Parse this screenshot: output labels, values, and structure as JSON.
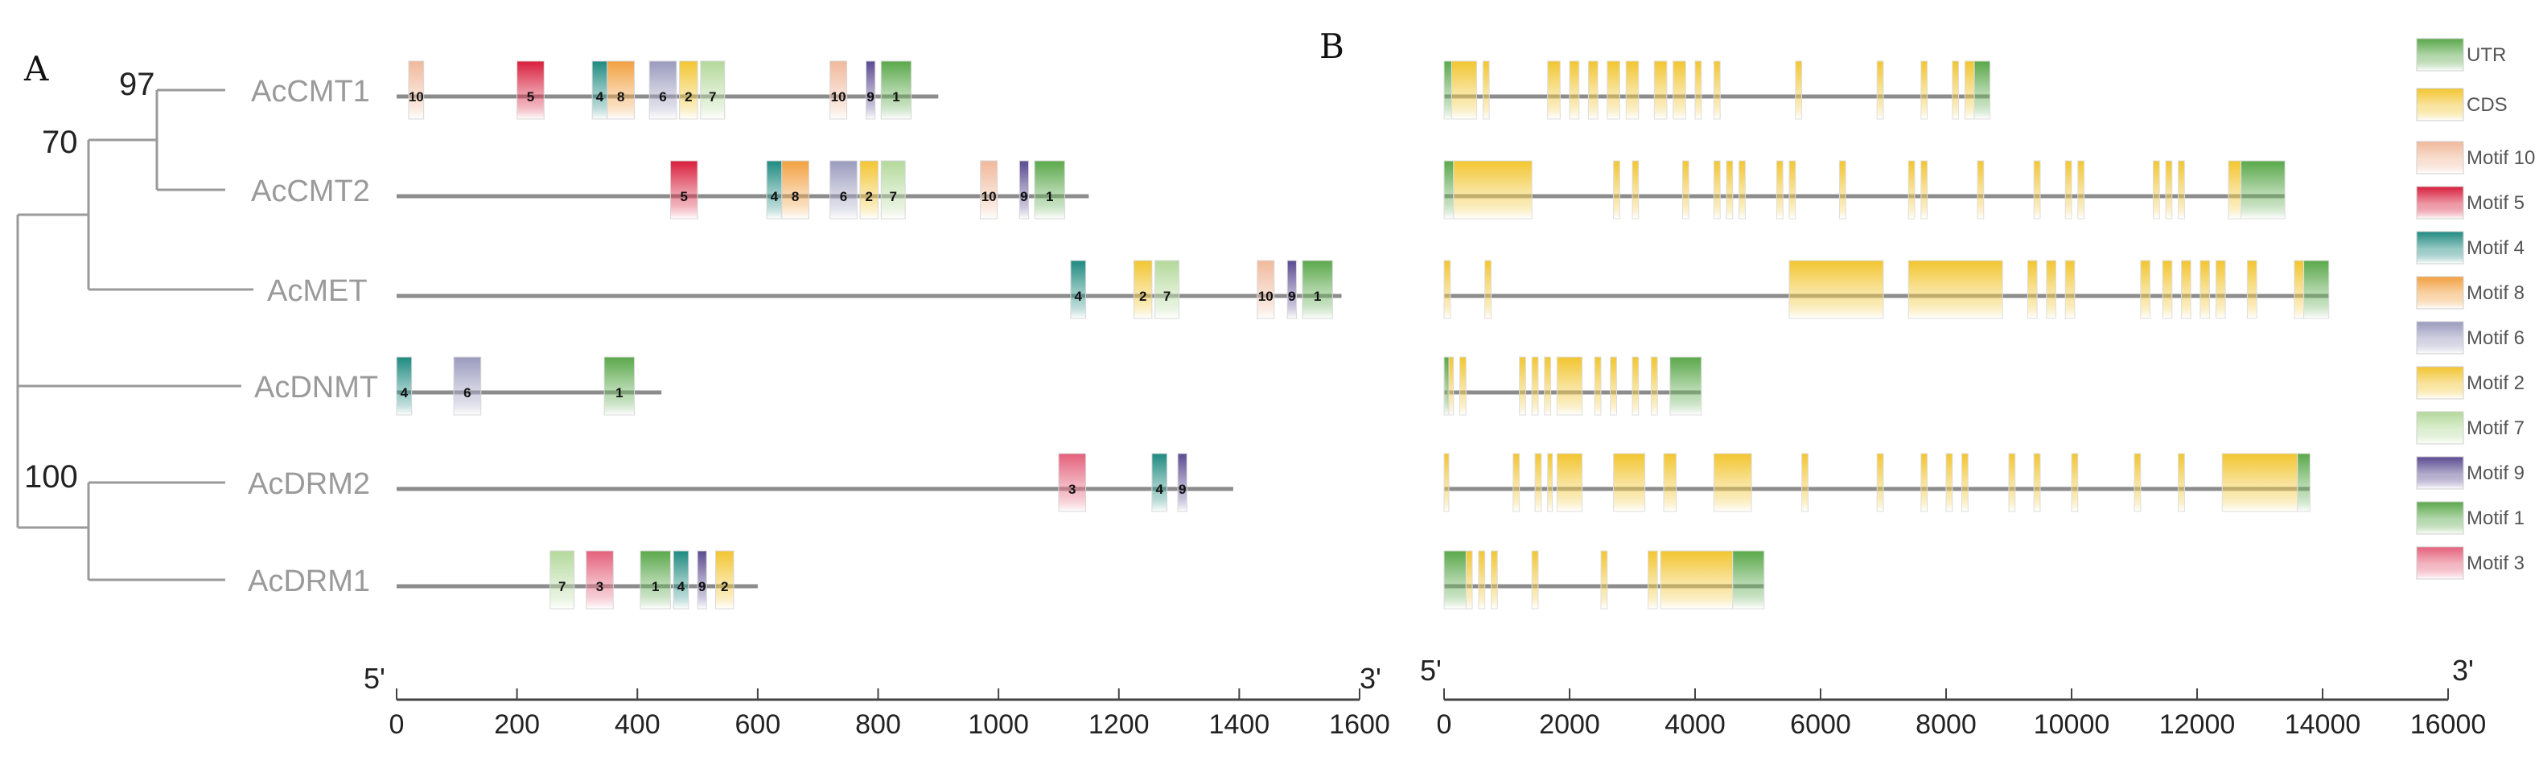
{
  "panels": {
    "a": "A",
    "b": "B"
  },
  "tree": {
    "bootstraps": [
      "97",
      "70",
      "100"
    ],
    "genes": [
      "AcCMT1",
      "AcCMT2",
      "AcMET",
      "AcDNMT",
      "AcDRM2",
      "AcDRM1"
    ]
  },
  "motif_colors": {
    "1": "#5aa84a",
    "2": "#f2c530",
    "3": "#e4607a",
    "4": "#1e8a80",
    "5": "#d81e3c",
    "6": "#9a9abe",
    "7": "#b3d99a",
    "8": "#f2a040",
    "9": "#5a4a90",
    "10": "#f0b89a"
  },
  "chart_data": [
    {
      "type": "motif_map",
      "title": "A",
      "x_axis": {
        "ticks": [
          0,
          200,
          400,
          600,
          800,
          1000,
          1200,
          1400,
          1600
        ],
        "start_label": "5'",
        "end_label": "3'"
      },
      "proteins": [
        {
          "gene": "AcCMT1",
          "length": 900,
          "motifs": [
            {
              "id": 10,
              "s": 20,
              "e": 45
            },
            {
              "id": 5,
              "s": 200,
              "e": 245
            },
            {
              "id": 4,
              "s": 325,
              "e": 350
            },
            {
              "id": 8,
              "s": 350,
              "e": 395
            },
            {
              "id": 6,
              "s": 420,
              "e": 465
            },
            {
              "id": 2,
              "s": 470,
              "e": 500
            },
            {
              "id": 7,
              "s": 505,
              "e": 545
            },
            {
              "id": 10,
              "s": 720,
              "e": 748
            },
            {
              "id": 9,
              "s": 780,
              "e": 795
            },
            {
              "id": 1,
              "s": 805,
              "e": 855
            }
          ]
        },
        {
          "gene": "AcCMT2",
          "length": 1150,
          "motifs": [
            {
              "id": 5,
              "s": 455,
              "e": 500
            },
            {
              "id": 4,
              "s": 615,
              "e": 640
            },
            {
              "id": 8,
              "s": 640,
              "e": 685
            },
            {
              "id": 6,
              "s": 720,
              "e": 765
            },
            {
              "id": 2,
              "s": 770,
              "e": 800
            },
            {
              "id": 7,
              "s": 805,
              "e": 845
            },
            {
              "id": 10,
              "s": 970,
              "e": 998
            },
            {
              "id": 9,
              "s": 1035,
              "e": 1050
            },
            {
              "id": 1,
              "s": 1060,
              "e": 1110
            }
          ]
        },
        {
          "gene": "AcMET",
          "length": 1570,
          "motifs": [
            {
              "id": 4,
              "s": 1120,
              "e": 1145
            },
            {
              "id": 2,
              "s": 1225,
              "e": 1255
            },
            {
              "id": 7,
              "s": 1260,
              "e": 1300
            },
            {
              "id": 10,
              "s": 1430,
              "e": 1458
            },
            {
              "id": 9,
              "s": 1480,
              "e": 1495
            },
            {
              "id": 1,
              "s": 1505,
              "e": 1555
            }
          ]
        },
        {
          "gene": "AcDNMT",
          "length": 440,
          "motifs": [
            {
              "id": 4,
              "s": 0,
              "e": 25
            },
            {
              "id": 6,
              "s": 95,
              "e": 140
            },
            {
              "id": 1,
              "s": 345,
              "e": 395
            }
          ]
        },
        {
          "gene": "AcDRM2",
          "length": 1390,
          "motifs": [
            {
              "id": 3,
              "s": 1100,
              "e": 1145
            },
            {
              "id": 4,
              "s": 1255,
              "e": 1280
            },
            {
              "id": 9,
              "s": 1298,
              "e": 1313
            }
          ]
        },
        {
          "gene": "AcDRM1",
          "length": 600,
          "motifs": [
            {
              "id": 7,
              "s": 255,
              "e": 295
            },
            {
              "id": 3,
              "s": 315,
              "e": 360
            },
            {
              "id": 1,
              "s": 405,
              "e": 455
            },
            {
              "id": 4,
              "s": 460,
              "e": 485
            },
            {
              "id": 9,
              "s": 500,
              "e": 515
            },
            {
              "id": 2,
              "s": 530,
              "e": 560
            }
          ]
        }
      ]
    },
    {
      "type": "gene_structure",
      "title": "B",
      "x_axis": {
        "ticks": [
          0,
          2000,
          4000,
          6000,
          8000,
          10000,
          12000,
          14000,
          16000
        ],
        "start_label": "5'",
        "end_label": "3'"
      },
      "genes": [
        {
          "gene": "AcCMT1",
          "length": 8700,
          "utr": [
            [
              0,
              120
            ],
            [
              8450,
              8700
            ]
          ],
          "cds": [
            [
              120,
              520
            ],
            [
              620,
              720
            ],
            [
              1650,
              1850
            ],
            [
              2000,
              2150
            ],
            [
              2300,
              2450
            ],
            [
              2600,
              2800
            ],
            [
              2900,
              3100
            ],
            [
              3350,
              3550
            ],
            [
              3650,
              3850
            ],
            [
              4000,
              4100
            ],
            [
              4300,
              4400
            ],
            [
              5600,
              5700
            ],
            [
              6900,
              7000
            ],
            [
              7600,
              7700
            ],
            [
              8100,
              8200
            ],
            [
              8300,
              8450
            ]
          ]
        },
        {
          "gene": "AcCMT2",
          "length": 13400,
          "utr": [
            [
              0,
              150
            ],
            [
              12700,
              13400
            ]
          ],
          "cds": [
            [
              150,
              1400
            ],
            [
              2700,
              2800
            ],
            [
              3000,
              3100
            ],
            [
              3800,
              3900
            ],
            [
              4300,
              4400
            ],
            [
              4500,
              4600
            ],
            [
              4700,
              4800
            ],
            [
              5300,
              5400
            ],
            [
              5500,
              5600
            ],
            [
              6300,
              6400
            ],
            [
              7400,
              7500
            ],
            [
              7600,
              7700
            ],
            [
              8500,
              8600
            ],
            [
              9400,
              9500
            ],
            [
              9900,
              10000
            ],
            [
              10100,
              10200
            ],
            [
              11300,
              11400
            ],
            [
              11500,
              11600
            ],
            [
              11700,
              11800
            ],
            [
              12500,
              12700
            ]
          ]
        },
        {
          "gene": "AcMET",
          "length": 14100,
          "utr": [
            [
              13700,
              14100
            ]
          ],
          "cds": [
            [
              0,
              100
            ],
            [
              650,
              750
            ],
            [
              5500,
              7000
            ],
            [
              7400,
              8900
            ],
            [
              9300,
              9450
            ],
            [
              9600,
              9750
            ],
            [
              9900,
              10050
            ],
            [
              11100,
              11250
            ],
            [
              11450,
              11600
            ],
            [
              11750,
              11900
            ],
            [
              12050,
              12200
            ],
            [
              12300,
              12450
            ],
            [
              12800,
              12950
            ],
            [
              13550,
              13700
            ]
          ]
        },
        {
          "gene": "AcDNMT",
          "length": 4100,
          "utr": [
            [
              0,
              50
            ],
            [
              3600,
              4100
            ]
          ],
          "cds": [
            [
              50,
              150
            ],
            [
              250,
              350
            ],
            [
              1200,
              1300
            ],
            [
              1400,
              1500
            ],
            [
              1600,
              1700
            ],
            [
              1800,
              2200
            ],
            [
              2400,
              2500
            ],
            [
              2650,
              2750
            ],
            [
              3000,
              3100
            ],
            [
              3300,
              3400
            ]
          ]
        },
        {
          "gene": "AcDRM2",
          "length": 13800,
          "utr": [
            [
              13600,
              13800
            ]
          ],
          "cds": [
            [
              0,
              50
            ],
            [
              1100,
              1200
            ],
            [
              1450,
              1550
            ],
            [
              1650,
              1700
            ],
            [
              1800,
              2200
            ],
            [
              2700,
              3200
            ],
            [
              3500,
              3700
            ],
            [
              4300,
              4900
            ],
            [
              5700,
              5800
            ],
            [
              6900,
              7000
            ],
            [
              7600,
              7700
            ],
            [
              8000,
              8100
            ],
            [
              8250,
              8350
            ],
            [
              9000,
              9100
            ],
            [
              9400,
              9500
            ],
            [
              10000,
              10100
            ],
            [
              11000,
              11100
            ],
            [
              11700,
              11800
            ],
            [
              12400,
              13600
            ]
          ]
        },
        {
          "gene": "AcDRM1",
          "length": 5100,
          "utr": [
            [
              0,
              350
            ],
            [
              4600,
              5100
            ]
          ],
          "cds": [
            [
              350,
              450
            ],
            [
              550,
              650
            ],
            [
              750,
              850
            ],
            [
              1400,
              1500
            ],
            [
              2500,
              2600
            ],
            [
              3250,
              3400
            ],
            [
              3450,
              4600
            ]
          ]
        }
      ]
    }
  ],
  "legend": [
    {
      "key": "utr",
      "label": "UTR",
      "color": "#5aa84a"
    },
    {
      "key": "cds",
      "label": "CDS",
      "color": "#f2c530"
    },
    {
      "key": "m10",
      "label": "Motif 10",
      "color": "#f0b89a"
    },
    {
      "key": "m5",
      "label": "Motif 5",
      "color": "#d81e3c"
    },
    {
      "key": "m4",
      "label": "Motif 4",
      "color": "#1e8a80"
    },
    {
      "key": "m8",
      "label": "Motif 8",
      "color": "#f2a040"
    },
    {
      "key": "m6",
      "label": "Motif 6",
      "color": "#9a9abe"
    },
    {
      "key": "m2",
      "label": "Motif 2",
      "color": "#f2c530"
    },
    {
      "key": "m7",
      "label": "Motif 7",
      "color": "#b3d99a"
    },
    {
      "key": "m9",
      "label": "Motif 9",
      "color": "#5a4a90"
    },
    {
      "key": "m1",
      "label": "Motif 1",
      "color": "#5aa84a"
    },
    {
      "key": "m3",
      "label": "Motif 3",
      "color": "#e4607a"
    }
  ]
}
